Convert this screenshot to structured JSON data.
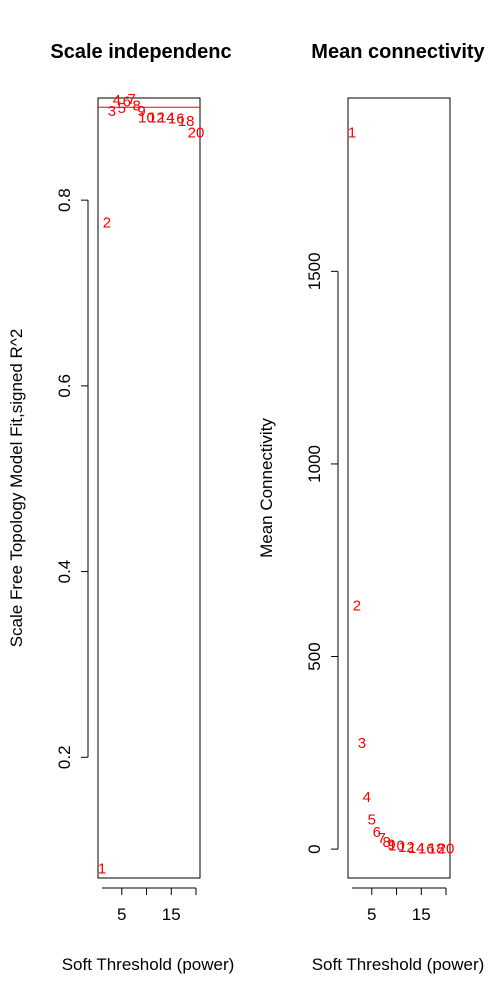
{
  "colors": {
    "points": "#ff0000",
    "reference_line": "#ff0000",
    "axes": "#000000"
  },
  "chart_data": [
    {
      "type": "scatter",
      "title": "Scale independenc",
      "xlabel": "Soft Threshold (power)",
      "ylabel": "Scale Free Topology Model Fit,signed R^2",
      "xlim": [
        1,
        20
      ],
      "ylim": [
        0.07,
        0.91
      ],
      "xticks": [
        5,
        15
      ],
      "xtick_labels": [
        "5",
        "15"
      ],
      "yticks": [
        0.2,
        0.4,
        0.6,
        0.8
      ],
      "ytick_labels": [
        "0.2",
        "0.4",
        "0.6",
        "0.8"
      ],
      "reference_line_y": 0.9,
      "grid": false,
      "points": [
        {
          "x": 1,
          "y": 0.08,
          "label": "1"
        },
        {
          "x": 2,
          "y": 0.776,
          "label": "2"
        },
        {
          "x": 3,
          "y": 0.896,
          "label": "3"
        },
        {
          "x": 4,
          "y": 0.908,
          "label": "4"
        },
        {
          "x": 5,
          "y": 0.899,
          "label": "5"
        },
        {
          "x": 6,
          "y": 0.906,
          "label": "6"
        },
        {
          "x": 7,
          "y": 0.909,
          "label": "7"
        },
        {
          "x": 8,
          "y": 0.902,
          "label": "8"
        },
        {
          "x": 9,
          "y": 0.896,
          "label": "9"
        },
        {
          "x": 10,
          "y": 0.889,
          "label": "10"
        },
        {
          "x": 12,
          "y": 0.889,
          "label": "12"
        },
        {
          "x": 14,
          "y": 0.889,
          "label": "14"
        },
        {
          "x": 16,
          "y": 0.888,
          "label": "16"
        },
        {
          "x": 18,
          "y": 0.885,
          "label": "18"
        },
        {
          "x": 20,
          "y": 0.873,
          "label": "20"
        }
      ]
    },
    {
      "type": "scatter",
      "title": "Mean connectivity",
      "xlabel": "Soft Threshold (power)",
      "ylabel": "Mean Connectivity",
      "xlim": [
        1,
        20
      ],
      "ylim": [
        -75,
        1950
      ],
      "xticks": [
        5,
        15
      ],
      "xtick_labels": [
        "5",
        "15"
      ],
      "yticks": [
        0,
        500,
        1000,
        1500
      ],
      "ytick_labels": [
        "0",
        "500",
        "1000",
        "1500"
      ],
      "grid": false,
      "points": [
        {
          "x": 1,
          "y": 1860,
          "label": "1"
        },
        {
          "x": 2,
          "y": 632,
          "label": "2"
        },
        {
          "x": 3,
          "y": 275,
          "label": "3"
        },
        {
          "x": 4,
          "y": 135,
          "label": "4"
        },
        {
          "x": 5,
          "y": 77,
          "label": "5"
        },
        {
          "x": 6,
          "y": 44,
          "label": "6"
        },
        {
          "x": 7,
          "y": 29,
          "label": "7"
        },
        {
          "x": 8,
          "y": 18,
          "label": "8"
        },
        {
          "x": 9,
          "y": 12,
          "label": "9"
        },
        {
          "x": 10,
          "y": 9,
          "label": "10"
        },
        {
          "x": 12,
          "y": 5,
          "label": "12"
        },
        {
          "x": 14,
          "y": 3,
          "label": "14"
        },
        {
          "x": 16,
          "y": 2,
          "label": "16"
        },
        {
          "x": 18,
          "y": 1,
          "label": "18"
        },
        {
          "x": 20,
          "y": 1,
          "label": "20"
        }
      ]
    }
  ]
}
